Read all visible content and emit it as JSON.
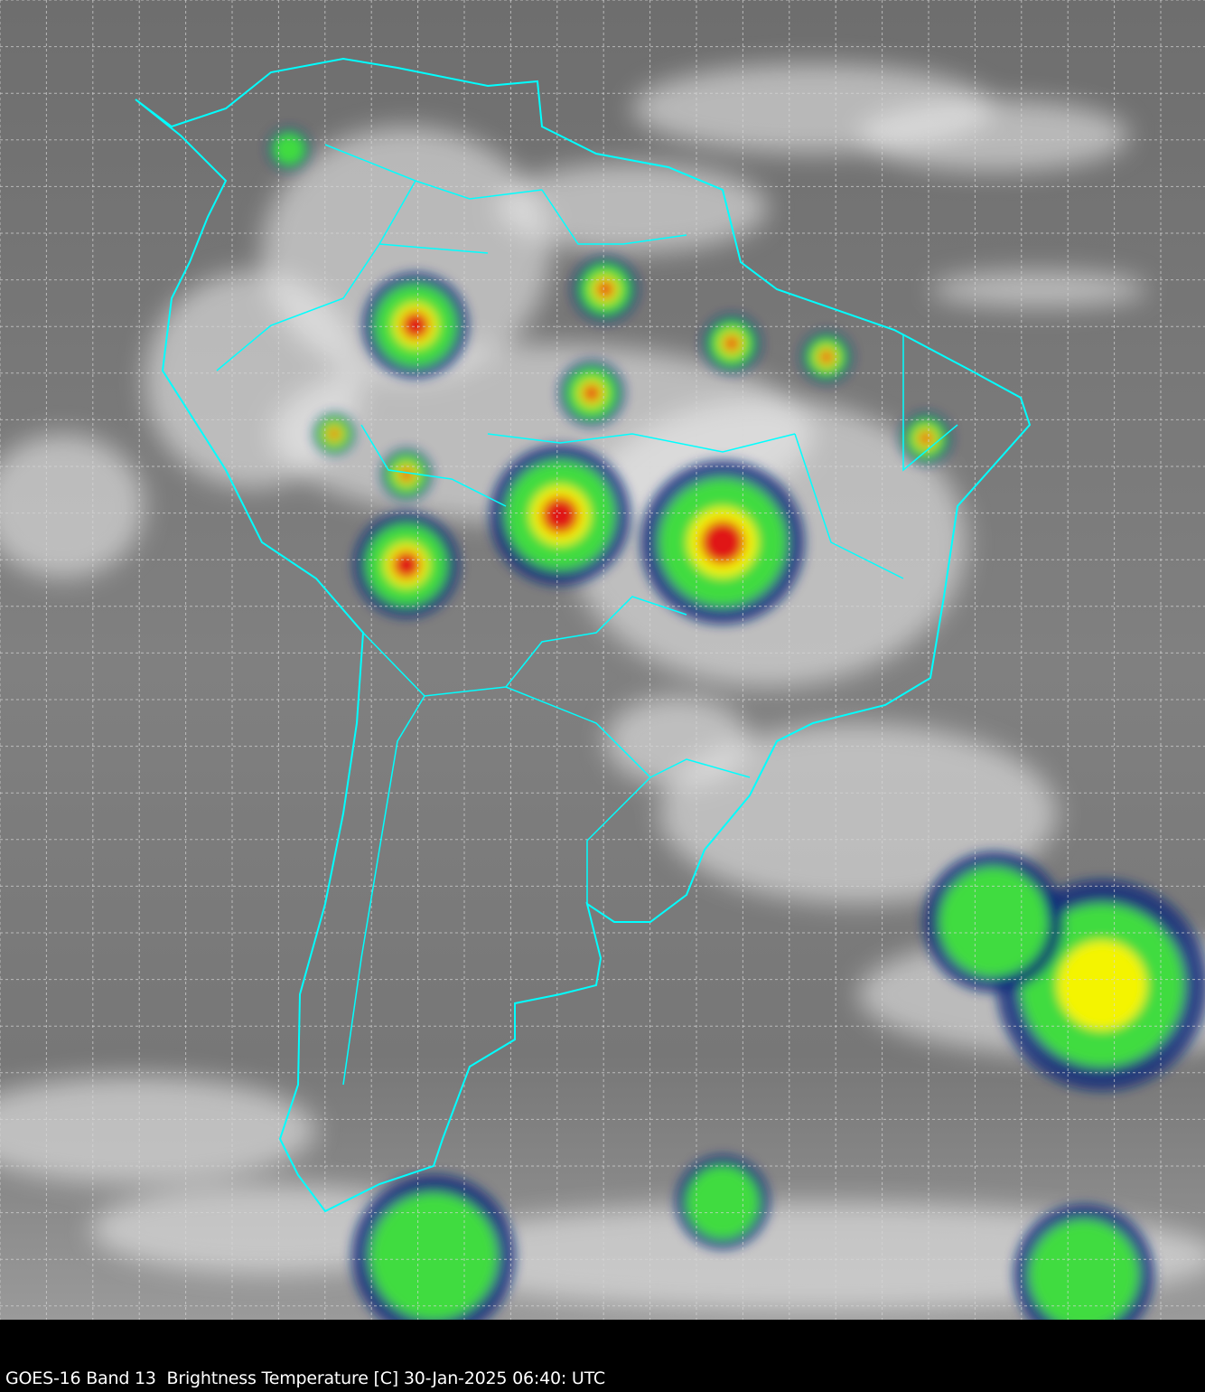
{
  "caption": "GOES-16 Band 13  Brightness Temperature [C] 30-Jan-2025 06:40: UTC",
  "colors": {
    "border_lines": "#00ffff",
    "grid_lines": "#d8d8d8",
    "background_gray": "#7a7a7a",
    "cold_cloud_white": "#f2f2f2",
    "convective_green": "#3fdc3f",
    "convective_yellow": "#f4f400",
    "convective_red": "#e01818",
    "convective_blue": "#0a2a7a"
  }
}
